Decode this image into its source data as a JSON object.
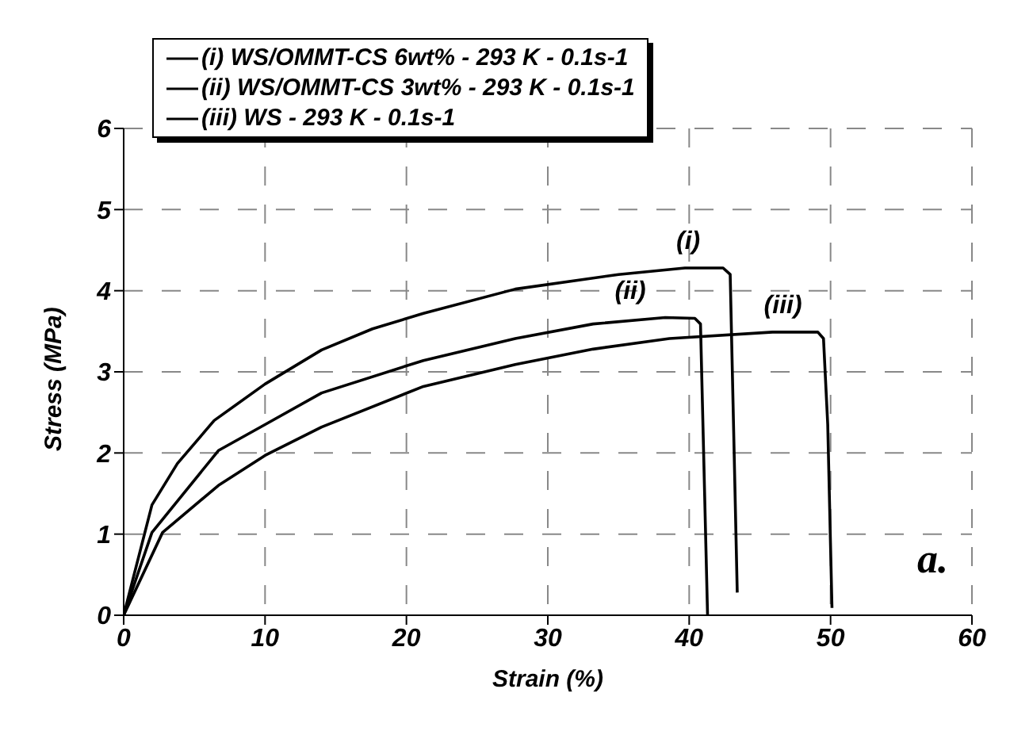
{
  "chart_data": {
    "type": "line",
    "xlabel": "Strain (%)",
    "ylabel": "Stress (MPa)",
    "xlim": [
      0,
      60
    ],
    "xticks": [
      0,
      10,
      20,
      30,
      40,
      50,
      60
    ],
    "ylim": [
      0,
      6
    ],
    "yticks": [
      0,
      1,
      2,
      3,
      4,
      5,
      6
    ],
    "grid": true,
    "legend": "top left",
    "marker": "none",
    "line_style": "solid",
    "series": [
      {
        "name": "(i) WS/OMMT-CS 6wt% - 293 K - 0.1s-1",
        "color": "#000000",
        "x": [
          0,
          2.0,
          3.8,
          6.4,
          10,
          14,
          17.6,
          21.2,
          27.7,
          35,
          39.7,
          42.4,
          42.9,
          43.4
        ],
        "values": [
          0,
          1.36,
          1.87,
          2.4,
          2.85,
          3.27,
          3.53,
          3.72,
          4.02,
          4.2,
          4.28,
          4.28,
          4.2,
          0.28
        ]
      },
      {
        "name": "(ii) WS/OMMT-CS 3wt% - 293 K - 0.1s-1",
        "color": "#000000",
        "x": [
          0,
          2.0,
          6.7,
          10,
          14,
          21.2,
          27.7,
          33.2,
          38.3,
          40.4,
          40.8,
          41.3
        ],
        "values": [
          0,
          1.02,
          2.03,
          2.35,
          2.74,
          3.14,
          3.41,
          3.59,
          3.67,
          3.66,
          3.59,
          0
        ]
      },
      {
        "name": "(iii) WS - 293 K - 0.1s-1",
        "color": "#000000",
        "x": [
          0,
          2.75,
          6.7,
          10,
          14,
          21.2,
          27.7,
          33.2,
          38.6,
          45.9,
          49.1,
          49.5,
          49.8,
          50.1
        ],
        "values": [
          0,
          1.02,
          1.6,
          1.97,
          2.32,
          2.82,
          3.09,
          3.28,
          3.41,
          3.49,
          3.49,
          3.41,
          2.35,
          0.09
        ]
      }
    ],
    "annotations": [
      "(i)",
      "(ii)",
      "(iii)",
      "a."
    ]
  }
}
